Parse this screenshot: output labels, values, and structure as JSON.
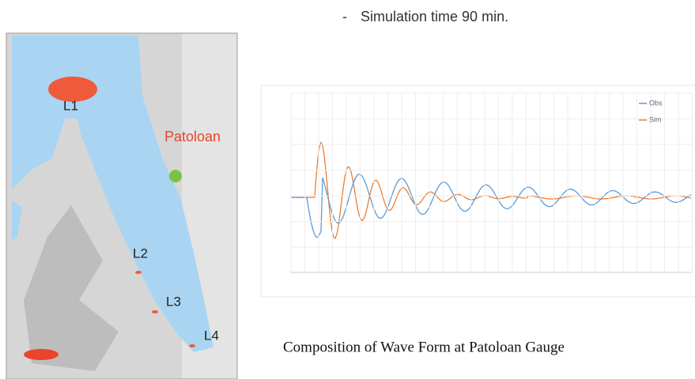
{
  "slide": {
    "bullet": "-",
    "bullet_text": "Simulation time 90 min.",
    "caption": "Composition of Wave Form at Patoloan Gauge"
  },
  "map": {
    "labels": [
      "L1",
      "Patoloan",
      "L2",
      "L3",
      "L4"
    ]
  },
  "chart": {
    "legend": [
      "Obs",
      "Sim"
    ]
  }
}
